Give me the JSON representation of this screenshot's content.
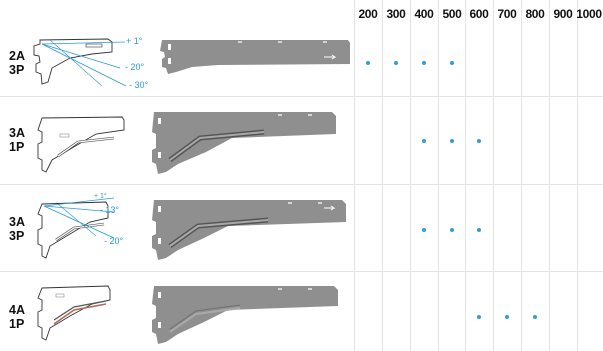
{
  "columns": [
    "200",
    "300",
    "400",
    "500",
    "600",
    "700",
    "800",
    "900",
    "1000"
  ],
  "colors": {
    "dot": "#2f9fd8",
    "angle_line": "#2b9ad6",
    "bracket": "#8f8f8f",
    "grid": "#e3e3e3"
  },
  "rows": [
    {
      "line1": "2A",
      "line2": "3P",
      "sizes": [
        "200",
        "300",
        "400",
        "500"
      ],
      "angles": [
        "+ 1°",
        "- 20°",
        "- 30°"
      ]
    },
    {
      "line1": "3A",
      "line2": "1P",
      "sizes": [
        "400",
        "500",
        "600"
      ],
      "angles": []
    },
    {
      "line1": "3A",
      "line2": "3P",
      "sizes": [
        "400",
        "500",
        "600"
      ],
      "angles": [
        "+ 1°",
        "- 13°",
        "- 20°"
      ]
    },
    {
      "line1": "4A",
      "line2": "1P",
      "sizes": [
        "600",
        "700",
        "800"
      ],
      "angles": []
    }
  ]
}
